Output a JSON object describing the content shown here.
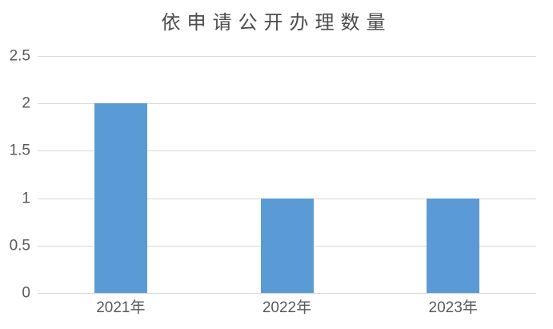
{
  "chart_data": {
    "type": "bar",
    "title": "依申请公开办理数量",
    "categories": [
      "2021年",
      "2022年",
      "2023年"
    ],
    "values": [
      2,
      1,
      1
    ],
    "xlabel": "",
    "ylabel": "",
    "ylim": [
      0,
      2.5
    ],
    "yticks": [
      0,
      0.5,
      1,
      1.5,
      2,
      2.5
    ],
    "ytick_labels": [
      "0",
      "0.5",
      "1",
      "1.5",
      "2",
      "2.5"
    ],
    "grid": true,
    "legend": false,
    "colors": {
      "bar": "#5B9BD5",
      "gridline": "#D9D9D9",
      "axis_line": "#D9D9D9",
      "tick_label": "#595959",
      "title": "#4D4D4D",
      "background": "#FFFFFF"
    }
  }
}
